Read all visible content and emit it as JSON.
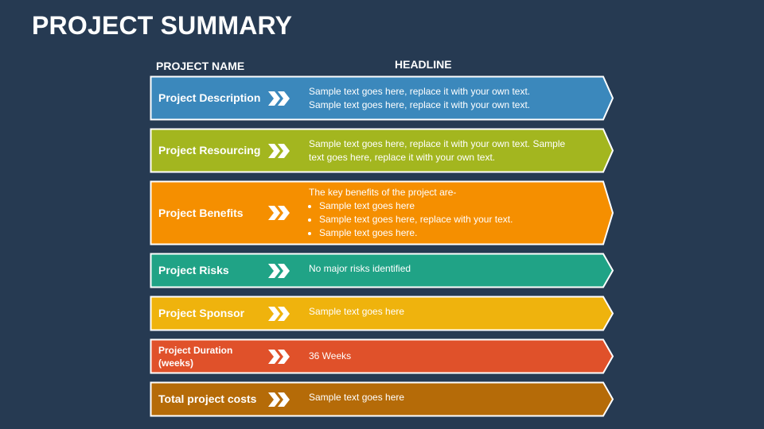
{
  "title": "PROJECT SUMMARY",
  "headers": {
    "name": "PROJECT NAME",
    "headline": "HEADLINE"
  },
  "rows": [
    {
      "name": "Project Description",
      "color": "#3b88bc",
      "lines": [
        "Sample text goes here, replace it with your own text.",
        "Sample text goes here, replace it with your own text."
      ]
    },
    {
      "name": "Project Resourcing",
      "color": "#a3b61f",
      "lines": [
        "Sample text goes here, replace it with your own text. Sample",
        "text goes here, replace it with your own text."
      ]
    },
    {
      "name": "Project Benefits",
      "color": "#f58f00",
      "intro": "The key benefits of the project are-",
      "bullets": [
        "Sample text goes here",
        "Sample text goes here, replace with your text.",
        "Sample text goes here."
      ]
    },
    {
      "name": "Project Risks",
      "color": "#20a386",
      "lines": [
        "No major risks identified"
      ]
    },
    {
      "name": "Project Sponsor",
      "color": "#efb30d",
      "lines": [
        "Sample text goes here"
      ]
    },
    {
      "name": "Project Duration (weeks)",
      "color": "#e0512a",
      "lines": [
        "36 Weeks"
      ]
    },
    {
      "name": "Total project costs",
      "color": "#b56b08",
      "lines": [
        "Sample text goes here"
      ]
    }
  ]
}
